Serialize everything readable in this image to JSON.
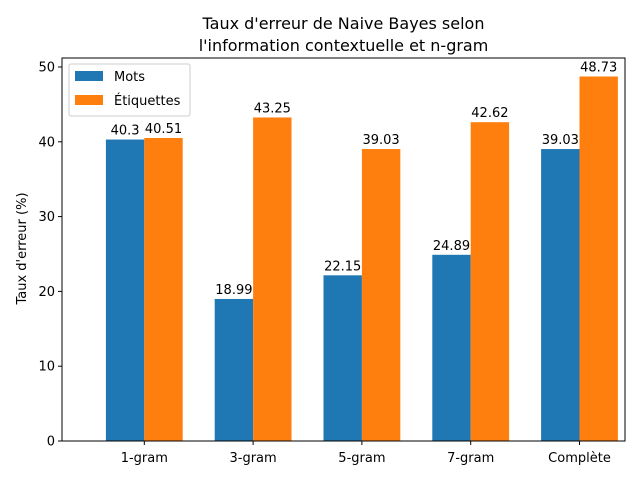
{
  "chart_data": {
    "type": "bar",
    "title_lines": [
      "Taux d'erreur de Naive Bayes selon",
      "l'information contextuelle et n-gram"
    ],
    "ylabel": "Taux d'erreur (%)",
    "xlabel": "",
    "categories": [
      "1-gram",
      "3-gram",
      "5-gram",
      "7-gram",
      "Complète"
    ],
    "series": [
      {
        "name": "Mots",
        "values": [
          40.3,
          18.99,
          22.15,
          24.89,
          39.03
        ],
        "value_labels": [
          "40.3",
          "18.99",
          "22.15",
          "24.89",
          "39.03"
        ],
        "color": "#1f77b4"
      },
      {
        "name": "Étiquettes",
        "values": [
          40.51,
          43.25,
          39.03,
          42.62,
          48.73
        ],
        "value_labels": [
          "40.51",
          "43.25",
          "39.03",
          "42.62",
          "48.73"
        ],
        "color": "#ff7f0e"
      }
    ],
    "ylim": [
      0,
      51.2
    ],
    "yticks": [
      0,
      10,
      20,
      30,
      40,
      50
    ],
    "grid": false,
    "legend_position": "top-left"
  }
}
